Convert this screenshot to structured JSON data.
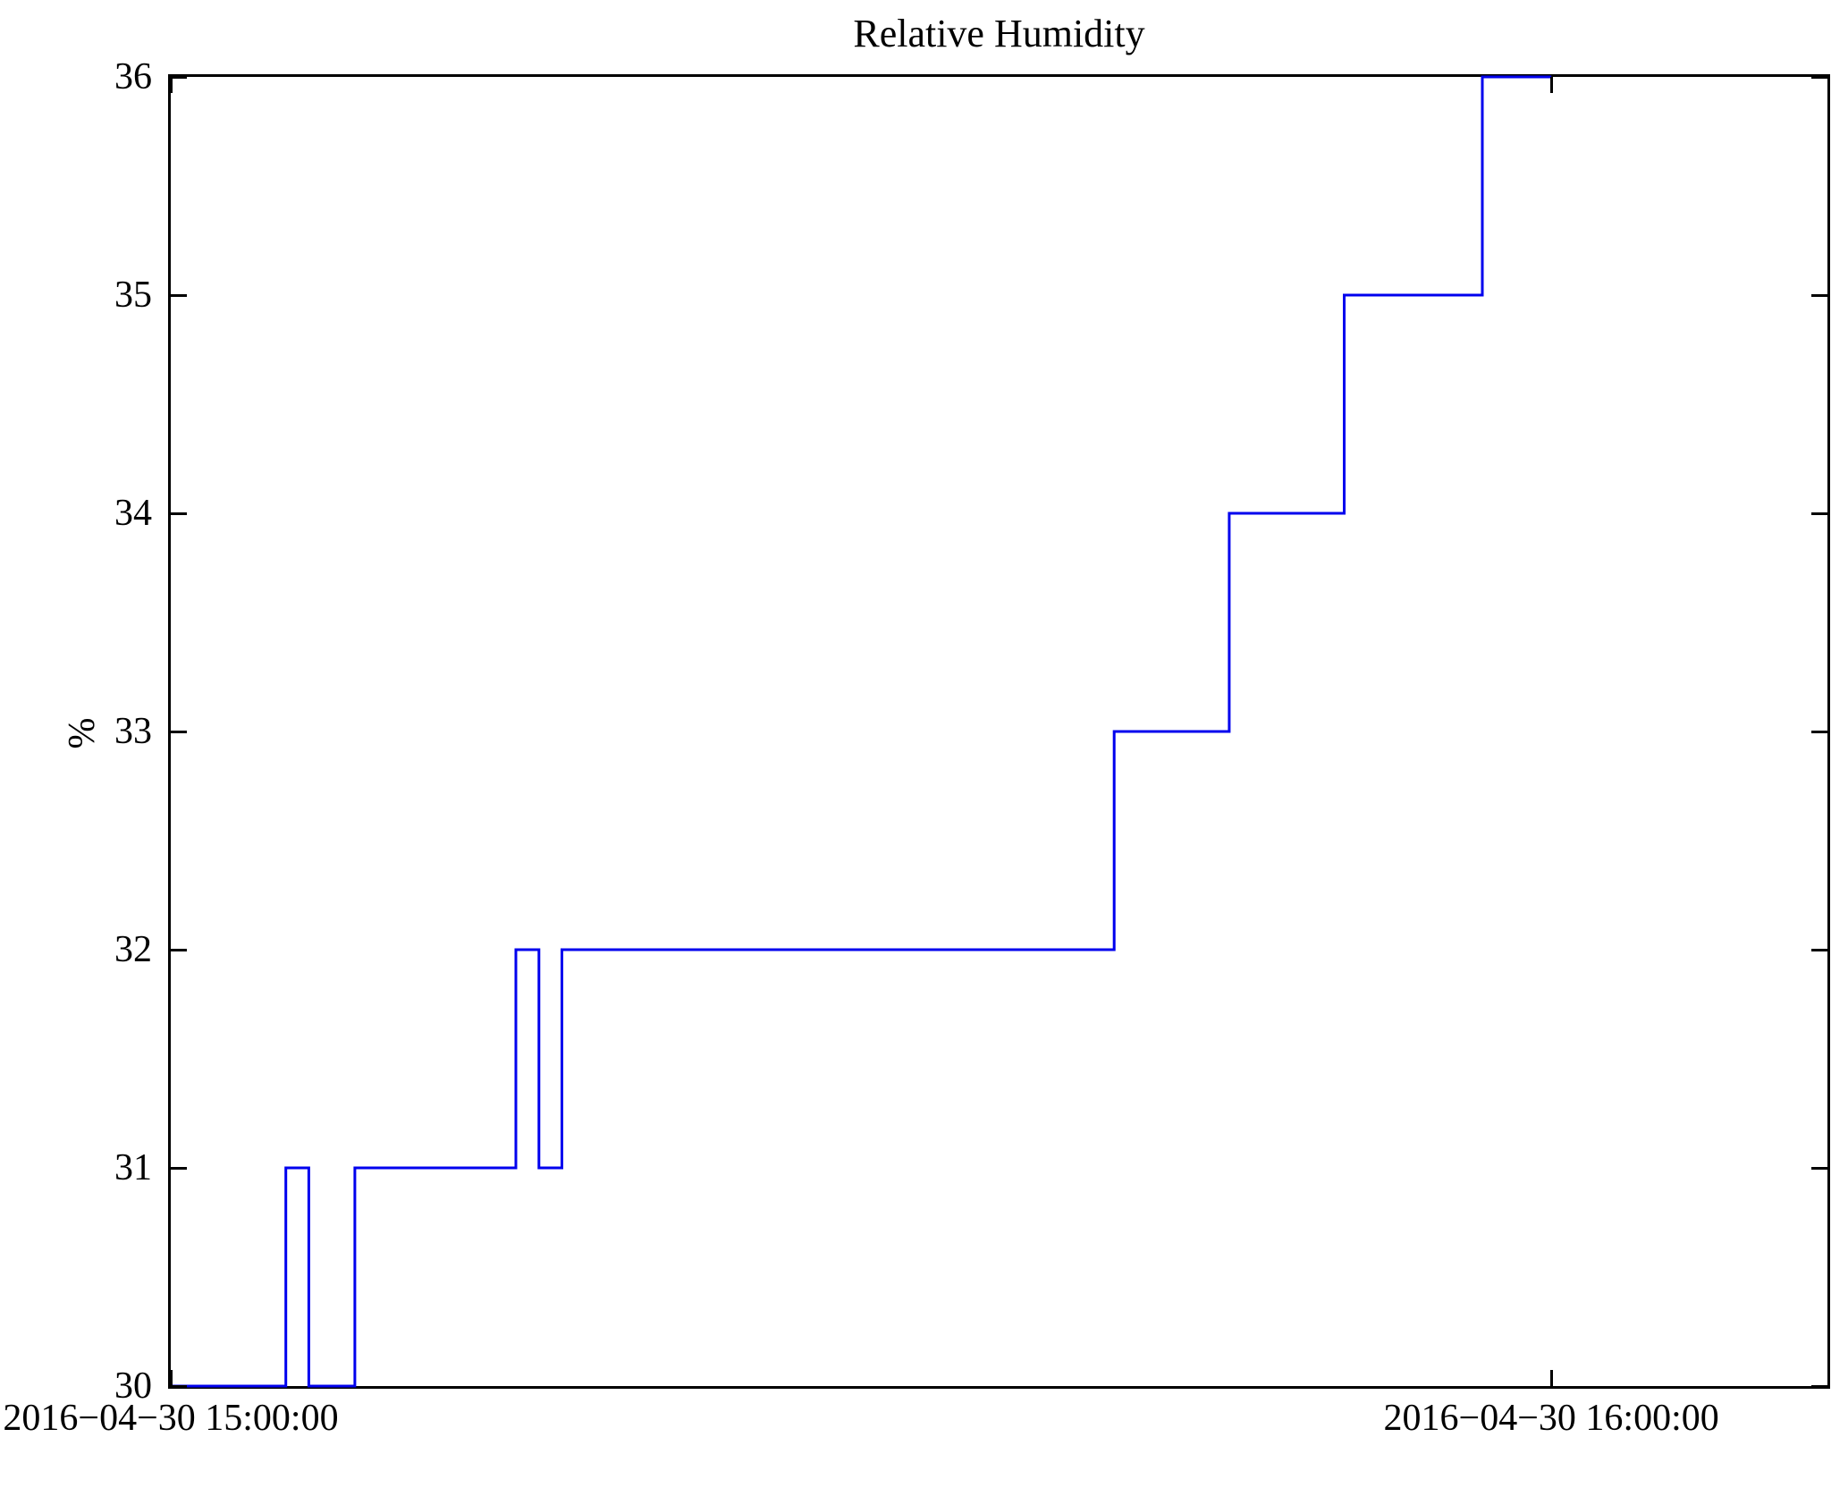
{
  "title": "Relative Humidity",
  "ylabel": "%",
  "chart_data": {
    "type": "line",
    "style": "step-post",
    "title": "Relative Humidity",
    "xlabel": "",
    "ylabel": "%",
    "grid": false,
    "legend": "none",
    "line_color": "#0000ee",
    "axis_color": "#000000",
    "start_time": "2016-04-30 15:00:00",
    "x_unit": "minutes after 15:00:00",
    "xlim_minutes": [
      0,
      72
    ],
    "ylim": [
      30,
      36
    ],
    "series": [
      {
        "name": "Relative Humidity (%)",
        "points_minutes_value": [
          [
            0,
            30
          ],
          [
            5,
            31
          ],
          [
            6,
            30
          ],
          [
            8,
            31
          ],
          [
            15,
            32
          ],
          [
            16,
            31
          ],
          [
            17,
            32
          ],
          [
            41,
            33
          ],
          [
            46,
            34
          ],
          [
            51,
            35
          ],
          [
            57,
            36
          ],
          [
            60,
            36
          ]
        ]
      }
    ],
    "x_ticks": [
      {
        "minutes": 0,
        "label": "2016−04−30 15:00:00"
      },
      {
        "minutes": 60,
        "label": "2016−04−30 16:00:00"
      }
    ],
    "y_ticks": [
      30,
      31,
      32,
      33,
      34,
      35,
      36
    ]
  }
}
